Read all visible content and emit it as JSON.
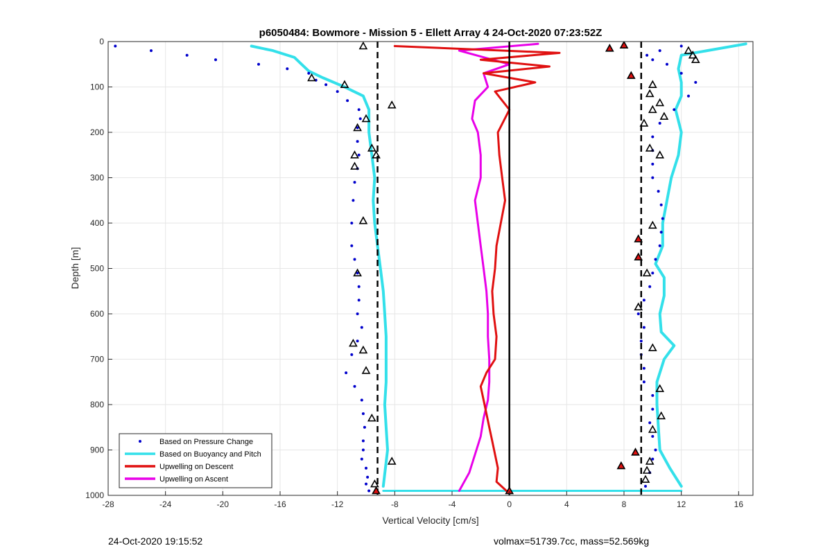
{
  "chart_data": {
    "type": "scatter",
    "title": "p6050484: Bowmore - Mission 5 - Ellett Array 4 24-Oct-2020 07:23:52Z",
    "xlabel": "Vertical Velocity [cm/s]",
    "ylabel": "Depth [m]",
    "xlim": [
      -28,
      17
    ],
    "ylim": [
      1000,
      0
    ],
    "y_reversed": true,
    "grid": true,
    "xticks": [
      -28,
      -24,
      -20,
      -16,
      -12,
      -8,
      -4,
      0,
      4,
      8,
      12,
      16
    ],
    "yticks": [
      0,
      100,
      200,
      300,
      400,
      500,
      600,
      700,
      800,
      900,
      1000
    ],
    "legend_position": "bottom-left",
    "series": [
      {
        "name": "Based on Pressure Change",
        "kind": "points",
        "color": "#0000cc",
        "descent_x": [
          -27.5,
          -25,
          -22.5,
          -20.5,
          -17.5,
          -15.5,
          -14,
          -13.5,
          -12.8,
          -12.0,
          -11.3,
          -10.5,
          -10.4,
          -10.6,
          -10.6,
          -10.5,
          -10.6,
          -10.8,
          -10.9,
          -11.0,
          -11.0,
          -10.8,
          -10.6,
          -10.5,
          -10.5,
          -10.6,
          -10.3,
          -10.6,
          -11.0,
          -11.4,
          -10.8,
          -10.3,
          -10.2,
          -10.1,
          -10.2,
          -10.2,
          -10.3,
          -10.0,
          -9.9,
          -10.0,
          -9.8
        ],
        "descent_y": [
          10,
          20,
          30,
          40,
          50,
          60,
          70,
          85,
          95,
          110,
          130,
          150,
          170,
          190,
          220,
          250,
          280,
          310,
          350,
          400,
          450,
          480,
          510,
          540,
          570,
          600,
          630,
          660,
          690,
          730,
          760,
          790,
          820,
          850,
          880,
          900,
          920,
          940,
          960,
          975,
          990
        ],
        "ascent_x": [
          9.5,
          9.8,
          10.0,
          10.2,
          10.0,
          9.8,
          10.0,
          10.0,
          9.4,
          9.4,
          9.2,
          9.2,
          9.4,
          9.0,
          9.4,
          9.8,
          10.0,
          10.2,
          10.5,
          10.6,
          10.7,
          10.6,
          10.4,
          10.0,
          10.0,
          10.0,
          10.0,
          10.5,
          11.5,
          12.5,
          13.0,
          12.0,
          11.0,
          10.0,
          9.6,
          10.5,
          12.0
        ],
        "ascent_y": [
          980,
          950,
          920,
          900,
          870,
          840,
          810,
          780,
          750,
          720,
          690,
          660,
          630,
          600,
          570,
          540,
          510,
          480,
          450,
          420,
          390,
          360,
          330,
          300,
          270,
          240,
          210,
          180,
          150,
          120,
          90,
          70,
          50,
          40,
          30,
          20,
          10
        ]
      },
      {
        "name": "Based on Buoyancy and Pitch",
        "kind": "line",
        "color": "#33e0ea",
        "descent_x": [
          -18,
          -16.5,
          -15,
          -14.5,
          -14.0,
          -13.0,
          -11.5,
          -10.2,
          -9.8,
          -9.8,
          -9.6,
          -9.4,
          -9.5,
          -9.4,
          -9.2,
          -9.0,
          -8.8,
          -8.7,
          -8.6,
          -8.6,
          -8.6,
          -8.7,
          -8.6,
          -8.5,
          -8.8
        ],
        "descent_y": [
          10,
          20,
          35,
          50,
          65,
          80,
          100,
          120,
          150,
          200,
          250,
          300,
          350,
          400,
          450,
          500,
          550,
          600,
          650,
          700,
          750,
          800,
          850,
          900,
          980
        ],
        "ascent_x": [
          12.0,
          11.2,
          10.5,
          10.4,
          10.3,
          10.3,
          10.8,
          11.5,
          10.6,
          10.5,
          10.8,
          10.8,
          10.2,
          10.7,
          10.7,
          11.0,
          11.3,
          11.8,
          12.0,
          11.6,
          12.0,
          12.0,
          11.8,
          12.0,
          16.5
        ],
        "ascent_y": [
          980,
          940,
          900,
          850,
          800,
          750,
          700,
          670,
          640,
          600,
          560,
          520,
          490,
          450,
          400,
          350,
          300,
          250,
          200,
          150,
          120,
          90,
          60,
          30,
          5
        ],
        "bottom_turn_x": [
          -8.8,
          12.0
        ],
        "bottom_turn_y": [
          990,
          990
        ]
      },
      {
        "name": "Upwelling on Descent",
        "kind": "line",
        "color": "#e01010",
        "x": [
          -8.0,
          3.5,
          -2.0,
          2.8,
          -1.8,
          1.8,
          -1.0,
          0.0,
          -0.8,
          -0.7,
          -0.5,
          -0.3,
          -0.6,
          -0.9,
          -1.0,
          -1.2,
          -1.1,
          -0.9,
          -1.0,
          -1.6,
          -2.0,
          -1.8,
          -1.6,
          -1.4,
          -1.2,
          -1.0,
          -0.8,
          -0.9,
          -0.2
        ],
        "y": [
          10,
          25,
          40,
          55,
          70,
          90,
          110,
          150,
          200,
          250,
          300,
          350,
          400,
          450,
          500,
          550,
          600,
          650,
          700,
          730,
          760,
          790,
          820,
          850,
          880,
          910,
          940,
          970,
          990
        ]
      },
      {
        "name": "Upwelling on Ascent",
        "kind": "line",
        "color": "#e800e8",
        "x": [
          -3.5,
          -2.8,
          -2.4,
          -2.0,
          -1.8,
          -1.5,
          -1.4,
          -1.4,
          -1.5,
          -1.5,
          -1.6,
          -1.8,
          -2.0,
          -2.2,
          -2.4,
          -2.0,
          -2.0,
          -2.2,
          -2.6,
          -2.4,
          -1.5,
          -1.8,
          0.0,
          -3.5,
          2.0
        ],
        "y": [
          990,
          950,
          910,
          870,
          830,
          790,
          750,
          700,
          650,
          600,
          550,
          500,
          450,
          400,
          350,
          300,
          250,
          200,
          170,
          130,
          100,
          70,
          50,
          20,
          5
        ]
      }
    ],
    "reference_lines": [
      {
        "x": -9.2,
        "style": "dashed",
        "color": "#000000"
      },
      {
        "x": 0,
        "style": "solid",
        "color": "#000000"
      },
      {
        "x": 9.2,
        "style": "dashed",
        "color": "#000000"
      }
    ],
    "markers_black_triangles": {
      "color": "#000000",
      "descent_x": [
        -10.2,
        -8.2,
        -10.0,
        -10.6,
        -9.6,
        -10.8,
        -10.8,
        -9.3,
        -10.2,
        -10.6,
        -10.9,
        -10.2,
        -10.0,
        -9.6,
        -8.2,
        -9.4
      ],
      "descent_y": [
        10,
        140,
        170,
        190,
        235,
        250,
        275,
        250,
        395,
        510,
        665,
        680,
        725,
        830,
        925,
        975
      ],
      "ascent_x": [
        -13.8,
        -11.5,
        12.5,
        12.8,
        13.0,
        10.0,
        9.8,
        10.5,
        10.0,
        10.8,
        9.4,
        9.8,
        10.5,
        10.0,
        9.6,
        9.0,
        10.0,
        10.5,
        10.6,
        10.0,
        9.8,
        9.6,
        9.5
      ],
      "ascent_y": [
        80,
        95,
        20,
        30,
        40,
        95,
        115,
        135,
        150,
        165,
        180,
        235,
        250,
        405,
        510,
        585,
        675,
        765,
        825,
        855,
        925,
        945,
        965
      ]
    },
    "markers_red_triangles": {
      "color": "#e01010",
      "x": [
        -9.3,
        0.0,
        7.0,
        8.0,
        8.5,
        9.0,
        9.0,
        8.8,
        7.8
      ],
      "y": [
        990,
        990,
        15,
        8,
        75,
        435,
        475,
        905,
        935
      ]
    }
  },
  "footer": {
    "timestamp": "24-Oct-2020 19:15:52",
    "summary": "volmax=51739.7cc, mass=52.569kg"
  }
}
